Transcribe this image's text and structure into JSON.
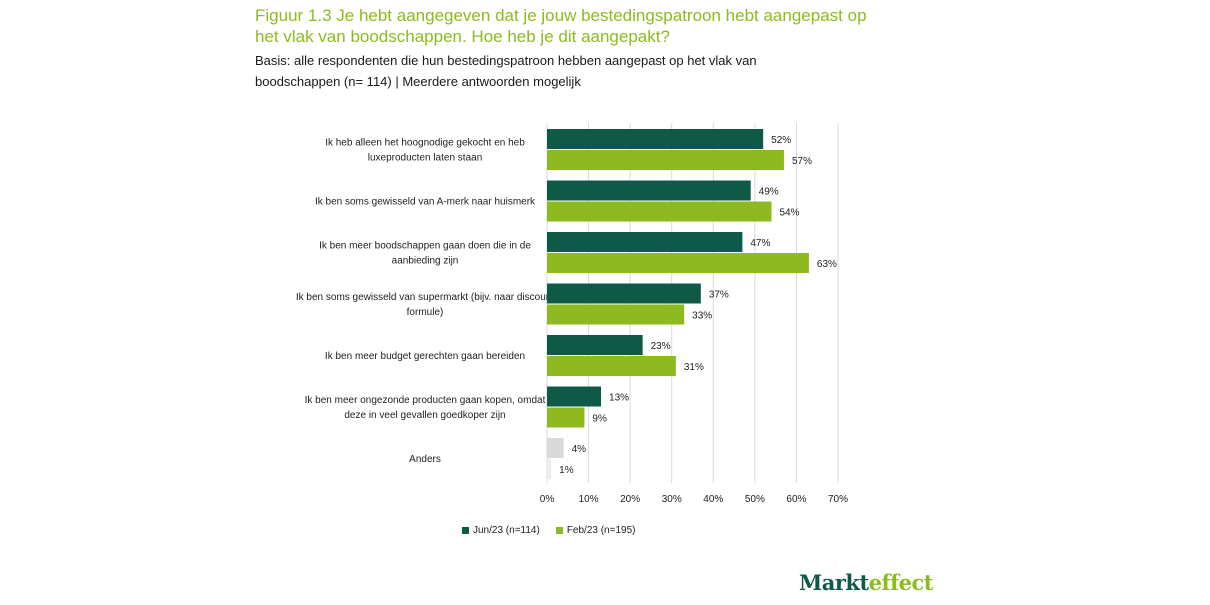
{
  "header": {
    "title": "Figuur 1.3 Je hebt aangegeven dat je jouw bestedingspatroon hebt aangepast op het vlak van boodschappen. Hoe heb je dit aangepakt?",
    "subtitle": "Basis: alle respondenten die hun bestedingspatroon hebben aangepast op het vlak van boodschappen (n= 114) | Meerdere antwoorden mogelijk"
  },
  "colors": {
    "title": "#8dbb1f",
    "jun": "#0f5a46",
    "feb": "#8dbb1f",
    "other_jun": "#d9d9d9",
    "other_feb": "#ececec",
    "grid": "#d9d9d9"
  },
  "chart_data": {
    "type": "bar",
    "orientation": "horizontal",
    "categories": [
      [
        "Ik heb alleen het hoognodige gekocht en heb",
        "luxeproducten laten staan"
      ],
      [
        "Ik ben soms gewisseld van A-merk naar huismerk"
      ],
      [
        "Ik ben meer boodschappen gaan doen die in de",
        "aanbieding zijn"
      ],
      [
        "Ik ben soms gewisseld van supermarkt (bijv. naar discount",
        "formule)"
      ],
      [
        "Ik ben meer budget gerechten gaan bereiden"
      ],
      [
        "Ik ben meer ongezonde producten gaan kopen, omdat",
        "deze in veel gevallen goedkoper zijn"
      ],
      [
        "Anders"
      ]
    ],
    "series": [
      {
        "name": "Jun/23 (n=114)",
        "values": [
          52,
          49,
          47,
          37,
          23,
          13,
          4
        ],
        "labels": [
          "52%",
          "49%",
          "47%",
          "37%",
          "23%",
          "13%",
          "4%"
        ]
      },
      {
        "name": "Feb/23 (n=195)",
        "values": [
          57,
          54,
          63,
          33,
          31,
          9,
          1
        ],
        "labels": [
          "57%",
          "54%",
          "63%",
          "33%",
          "31%",
          "9%",
          "1%"
        ]
      }
    ],
    "xlim": [
      0,
      70
    ],
    "xticks": [
      0,
      10,
      20,
      30,
      40,
      50,
      60,
      70
    ],
    "xtick_labels": [
      "0%",
      "10%",
      "20%",
      "30%",
      "40%",
      "50%",
      "60%",
      "70%"
    ],
    "grid": true,
    "legend_position": "bottom"
  },
  "legend": {
    "jun_label": "Jun/23 (n=114)",
    "feb_label": "Feb/23 (n=195)"
  },
  "logo": {
    "part1": "Markt",
    "part2": "effect"
  }
}
